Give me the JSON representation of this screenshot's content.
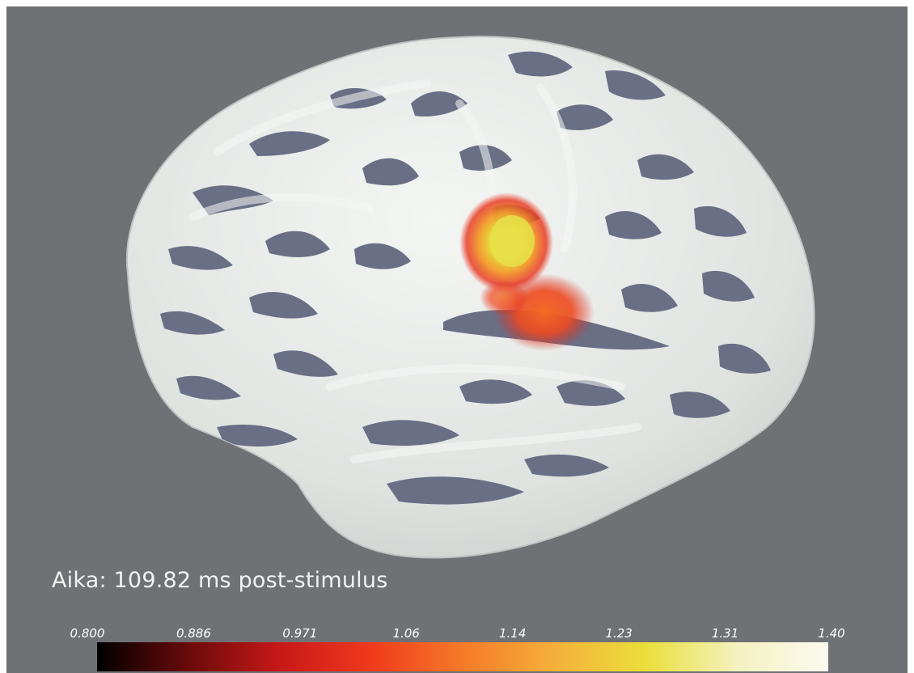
{
  "caption": {
    "text": "Aika: 109.82 ms post-stimulus"
  },
  "colorbar": {
    "ticks": [
      "0.800",
      "0.886",
      "0.971",
      "1.06",
      "1.14",
      "1.23",
      "1.31",
      "1.40"
    ],
    "range": [
      0.8,
      1.4
    ],
    "colormap": "hot",
    "colors": [
      "#000000",
      "#6a0a0a",
      "#c81818",
      "#f03a1c",
      "#f57a28",
      "#f4b03a",
      "#eadf3a",
      "#f4f2c0",
      "#fbfaf0"
    ]
  },
  "scene": {
    "background_color": "#6f7174",
    "cortex_gyri_color": "#e6e9e6",
    "cortex_sulci_color": "#6a6f86",
    "activation_colormap": "hot",
    "view": "left hemisphere, lateral",
    "activation_peak_color": "#e7e04a"
  }
}
